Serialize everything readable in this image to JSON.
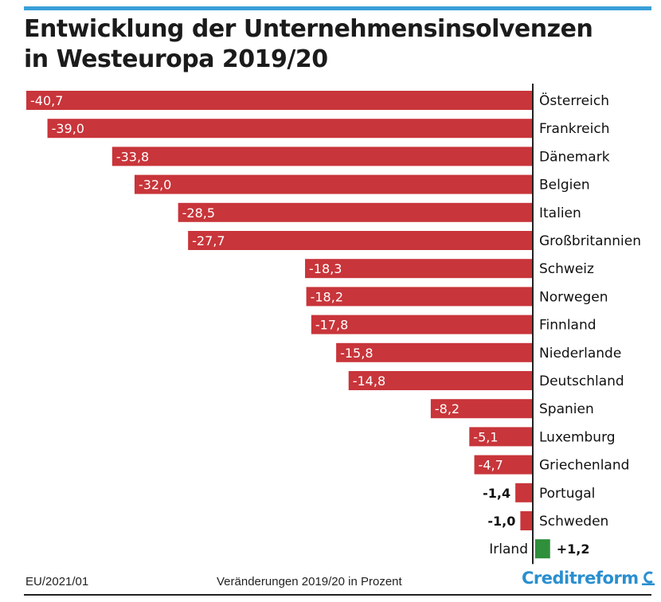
{
  "title": {
    "line1": "Entwicklung der Unternehmensinsolvenzen",
    "line2": "in Westeuropa 2019/20"
  },
  "footer": {
    "source": "EU/2021/01",
    "caption": "Veränderungen 2019/20 in Prozent",
    "logo": "Creditreform"
  },
  "colors": {
    "negative": "#c8353a",
    "positive": "#2f8f3a",
    "axis": "#222222",
    "accent": "#3a9fd8"
  },
  "chart_data": {
    "type": "bar",
    "orientation": "horizontal",
    "categories": [
      "Österreich",
      "Frankreich",
      "Dänemark",
      "Belgien",
      "Italien",
      "Großbritannien",
      "Schweiz",
      "Norwegen",
      "Finnland",
      "Niederlande",
      "Deutschland",
      "Spanien",
      "Luxemburg",
      "Griechenland",
      "Portugal",
      "Schweden",
      "Irland"
    ],
    "values": [
      -40.7,
      -39.0,
      -33.8,
      -32.0,
      -28.5,
      -27.7,
      -18.3,
      -18.2,
      -17.8,
      -15.8,
      -14.8,
      -8.2,
      -5.1,
      -4.7,
      -1.4,
      -1.0,
      1.2
    ],
    "labels": [
      "-40,7",
      "-39,0",
      "-33,8",
      "-32,0",
      "-28,5",
      "-27,7",
      "-18,3",
      "-18,2",
      "-17,8",
      "-15,8",
      "-14,8",
      "-8,2",
      "-5,1",
      "-4,7",
      "-1,4",
      "-1,0",
      "+1,2"
    ],
    "title": "Entwicklung der Unternehmensinsolvenzen in Westeuropa 2019/20",
    "xlabel": "Veränderungen 2019/20 in Prozent",
    "ylabel": "",
    "xlim": [
      -40.7,
      1.2
    ],
    "grid": false,
    "legend": "none"
  }
}
